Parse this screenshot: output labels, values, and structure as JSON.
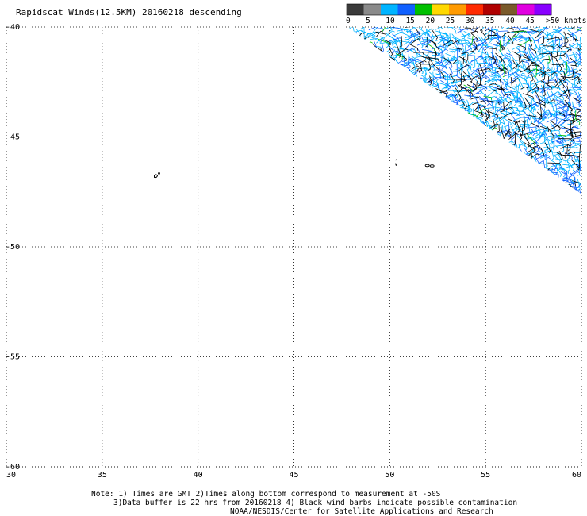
{
  "chart_data": {
    "type": "scatter",
    "title": "Rapidscat Winds(12.5KM) 20160218 descending",
    "x": {
      "label": "",
      "lim": [
        30,
        60
      ],
      "ticks": [
        30,
        35,
        40,
        45,
        50,
        55,
        60
      ],
      "tick_labels": [
        "30",
        "35",
        "40",
        "45",
        "50",
        "55",
        "60"
      ]
    },
    "y": {
      "label": "",
      "lim": [
        -60,
        -40
      ],
      "ticks": [
        -40,
        -45,
        -50,
        -55,
        -60
      ],
      "tick_labels": [
        "-40",
        "-45",
        "-50",
        "-55",
        "-60"
      ]
    },
    "grid": true,
    "colorbar": {
      "unit_label": ">50 knots",
      "labels": [
        "0",
        "5",
        "10",
        "15",
        "20",
        "25",
        "30",
        "35",
        "40",
        "45"
      ],
      "colors": [
        "#3a3a3a",
        "#8a8a8a",
        "#00b4ff",
        "#1060ff",
        "#00c000",
        "#ffd800",
        "#ff9a00",
        "#ff2a00",
        "#b00000",
        "#7a5a2a",
        "#e000e0",
        "#8800ff"
      ]
    },
    "wind_swath": {
      "polygon_lon_lat": [
        [
          47.8,
          -40
        ],
        [
          60,
          -40
        ],
        [
          60,
          -47.6
        ],
        [
          47.8,
          -40
        ]
      ],
      "dominant_speed_knots": "5-15",
      "colors_present": [
        "#00b4ff",
        "#1060ff",
        "#000000",
        "#00c000"
      ]
    },
    "land_features": [
      {
        "name": "",
        "lon": 37.8,
        "lat": -46.8
      },
      {
        "name": "",
        "lon": 50.3,
        "lat": -46.2
      },
      {
        "name": "",
        "lon": 52.0,
        "lat": -46.3
      }
    ]
  },
  "notes": {
    "line1": "Note: 1) Times are GMT 2)Times along bottom correspond to measurement at -50S",
    "line2": "3)Data buffer is 22 hrs from 20160218 4) Black wind barbs indicate possible contamination",
    "line3": "NOAA/NESDIS/Center for Satellite Applications and Research"
  }
}
